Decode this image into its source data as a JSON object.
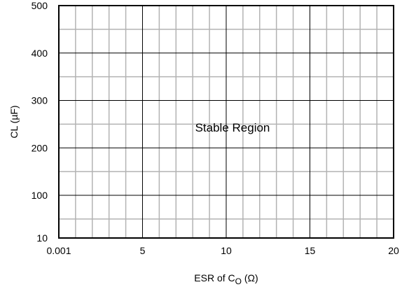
{
  "chart_data": {
    "type": "area",
    "title": "",
    "xlabel": {
      "prefix": "ESR of C",
      "subscript": "O",
      "suffix": " (Ω)"
    },
    "ylabel": "CL (µF)",
    "xlim": [
      0.001,
      20
    ],
    "ylim": [
      10,
      500
    ],
    "x_ticks": [
      {
        "value": 0.001,
        "label": "0.001"
      },
      {
        "value": 5,
        "label": "5"
      },
      {
        "value": 10,
        "label": "10"
      },
      {
        "value": 15,
        "label": "15"
      },
      {
        "value": 20,
        "label": "20"
      }
    ],
    "y_ticks": [
      {
        "value": 10,
        "label": "10"
      },
      {
        "value": 100,
        "label": "100"
      },
      {
        "value": 200,
        "label": "200"
      },
      {
        "value": 300,
        "label": "300"
      },
      {
        "value": 400,
        "label": "400"
      },
      {
        "value": 500,
        "label": "500"
      }
    ],
    "grid": true,
    "x_minor_step": 1,
    "y_minor_step": 50,
    "annotation": {
      "text": "Stable Region",
      "x": 10,
      "y": 250
    }
  }
}
